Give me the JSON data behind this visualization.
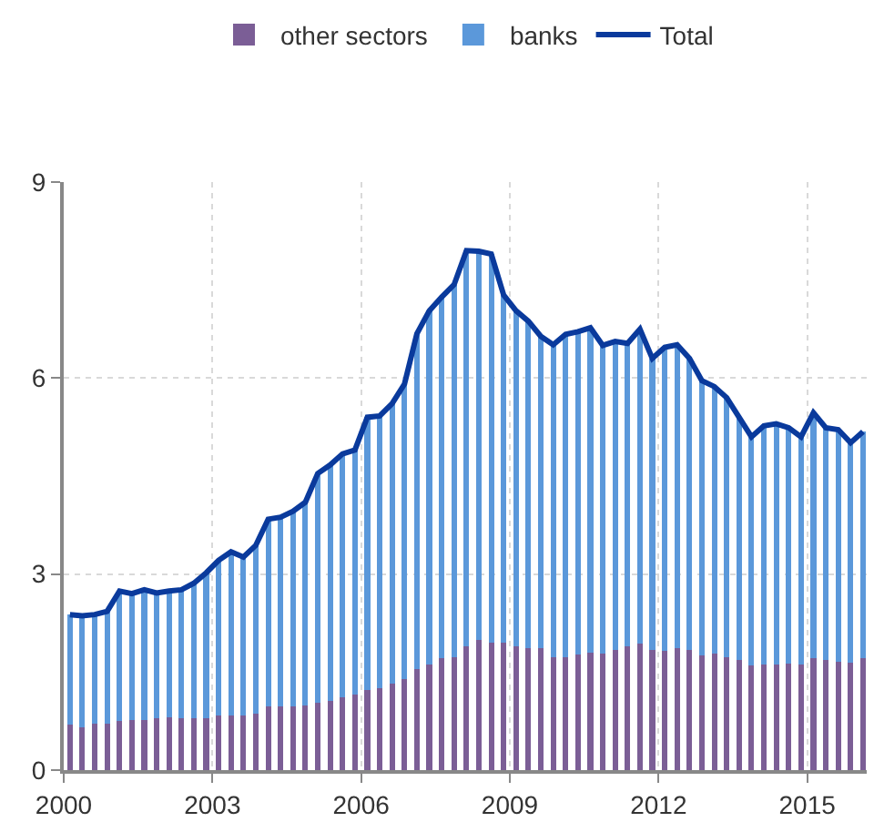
{
  "chart_data": {
    "type": "bar",
    "stacked": true,
    "x": [
      2000.125,
      2000.375,
      2000.625,
      2000.875,
      2001.125,
      2001.375,
      2001.625,
      2001.875,
      2002.125,
      2002.375,
      2002.625,
      2002.875,
      2003.125,
      2003.375,
      2003.625,
      2003.875,
      2004.125,
      2004.375,
      2004.625,
      2004.875,
      2005.125,
      2005.375,
      2005.625,
      2005.875,
      2006.125,
      2006.375,
      2006.625,
      2006.875,
      2007.125,
      2007.375,
      2007.625,
      2007.875,
      2008.125,
      2008.375,
      2008.625,
      2008.875,
      2009.125,
      2009.375,
      2009.625,
      2009.875,
      2010.125,
      2010.375,
      2010.625,
      2010.875,
      2011.125,
      2011.375,
      2011.625,
      2011.875,
      2012.125,
      2012.375,
      2012.625,
      2012.875,
      2013.125,
      2013.375,
      2013.625,
      2013.875,
      2014.125,
      2014.375,
      2014.625,
      2014.875,
      2015.125,
      2015.375,
      2015.625,
      2015.875,
      2016.125
    ],
    "series": [
      {
        "name": "other sectors",
        "color": "#7b5e96",
        "values": [
          0.69,
          0.66,
          0.71,
          0.71,
          0.75,
          0.77,
          0.77,
          0.79,
          0.81,
          0.8,
          0.79,
          0.79,
          0.83,
          0.83,
          0.84,
          0.87,
          0.97,
          0.97,
          0.97,
          0.99,
          1.03,
          1.06,
          1.11,
          1.15,
          1.23,
          1.25,
          1.32,
          1.39,
          1.54,
          1.61,
          1.71,
          1.73,
          1.9,
          1.99,
          1.95,
          1.95,
          1.9,
          1.87,
          1.87,
          1.73,
          1.73,
          1.77,
          1.8,
          1.78,
          1.84,
          1.9,
          1.93,
          1.84,
          1.82,
          1.87,
          1.84,
          1.76,
          1.78,
          1.73,
          1.69,
          1.6,
          1.61,
          1.61,
          1.63,
          1.61,
          1.71,
          1.69,
          1.66,
          1.65,
          1.71
        ]
      },
      {
        "name": "banks",
        "color": "#5b98da",
        "values": [
          1.69,
          1.7,
          1.67,
          1.72,
          1.99,
          1.93,
          1.99,
          1.92,
          1.93,
          1.96,
          2.07,
          2.23,
          2.38,
          2.51,
          2.42,
          2.57,
          2.87,
          2.9,
          2.99,
          3.11,
          3.51,
          3.61,
          3.73,
          3.75,
          4.17,
          4.17,
          4.29,
          4.52,
          5.14,
          5.42,
          5.53,
          5.7,
          6.05,
          5.95,
          5.95,
          5.32,
          5.13,
          5.0,
          4.77,
          4.78,
          4.94,
          4.94,
          4.97,
          4.72,
          4.72,
          4.63,
          4.82,
          4.46,
          4.65,
          4.64,
          4.46,
          4.2,
          4.09,
          3.97,
          3.71,
          3.5,
          3.66,
          3.69,
          3.61,
          3.49,
          3.76,
          3.55,
          3.55,
          3.36,
          3.47
        ]
      },
      {
        "name": "Total",
        "type": "line",
        "color": "#0a3a9c",
        "values": [
          2.38,
          2.36,
          2.38,
          2.43,
          2.74,
          2.7,
          2.76,
          2.71,
          2.74,
          2.76,
          2.86,
          3.02,
          3.21,
          3.34,
          3.26,
          3.44,
          3.84,
          3.87,
          3.96,
          4.1,
          4.54,
          4.67,
          4.84,
          4.9,
          5.4,
          5.42,
          5.61,
          5.91,
          6.68,
          7.03,
          7.24,
          7.43,
          7.95,
          7.94,
          7.9,
          7.27,
          7.03,
          6.87,
          6.64,
          6.51,
          6.67,
          6.71,
          6.77,
          6.5,
          6.56,
          6.53,
          6.75,
          6.3,
          6.47,
          6.51,
          6.3,
          5.96,
          5.87,
          5.7,
          5.4,
          5.1,
          5.27,
          5.3,
          5.24,
          5.1,
          5.47,
          5.24,
          5.21,
          5.01,
          5.18
        ]
      }
    ],
    "xlim": [
      2000,
      2016.2
    ],
    "xticks": [
      2000,
      2003,
      2006,
      2009,
      2012,
      2015
    ],
    "ylim": [
      0,
      9
    ],
    "yticks": [
      0,
      3,
      6,
      9
    ],
    "grid": true,
    "legend": "top"
  }
}
